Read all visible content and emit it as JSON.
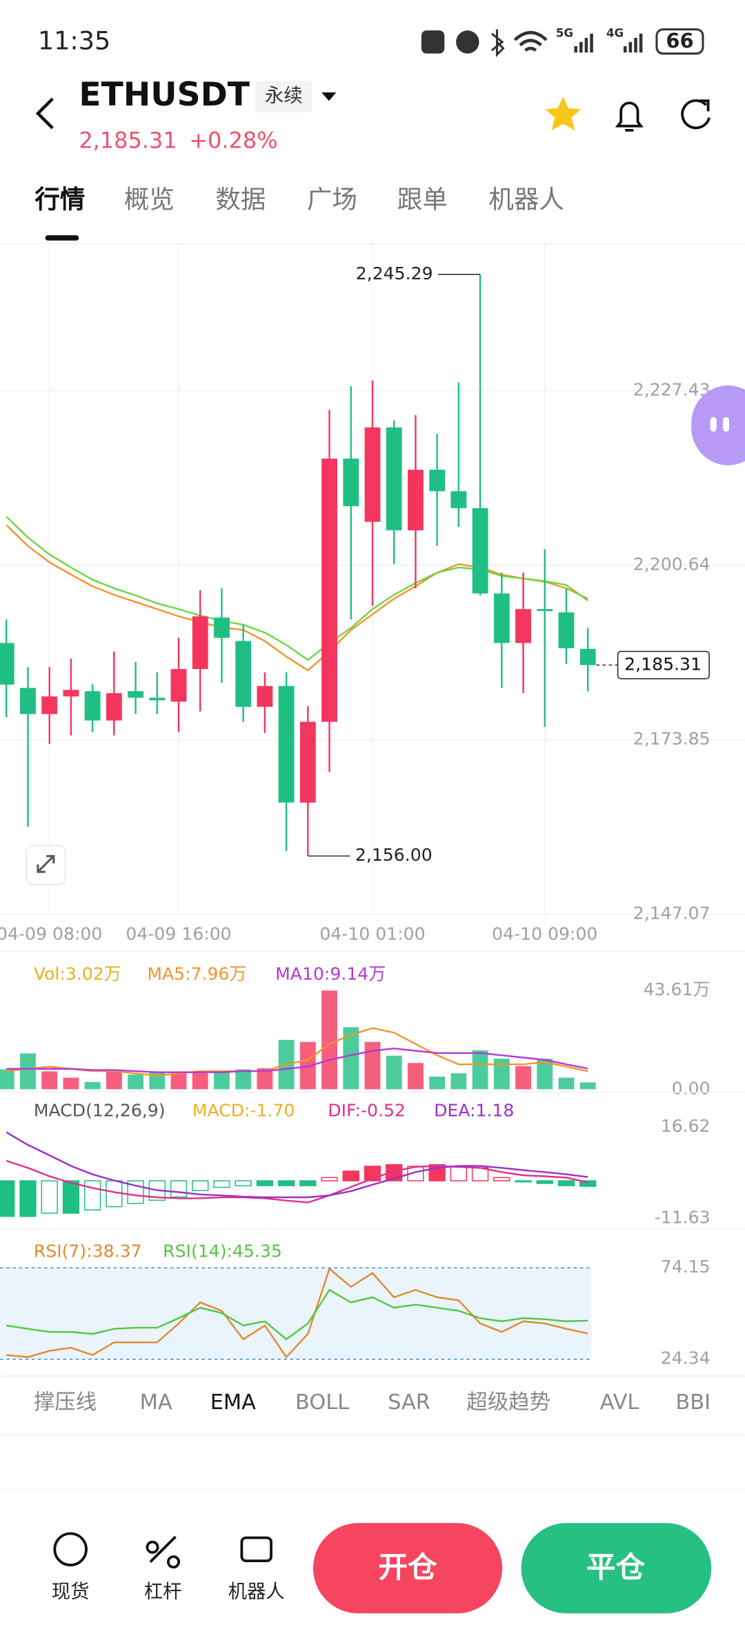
{
  "status_bar": {
    "time": "11:35",
    "net1": "5G",
    "net2": "4G",
    "battery": "66"
  },
  "header": {
    "symbol": "ETHUSDT",
    "badge": "永续",
    "price": "2,185.31",
    "change": "+0.28%"
  },
  "tabs": [
    "行情",
    "概览",
    "数据",
    "广场",
    "跟单",
    "机器人"
  ],
  "chart_data": [
    {
      "type": "candlestick",
      "categories": [
        null,
        null,
        "04-09 08:00",
        null,
        null,
        null,
        null,
        null,
        "04-09 16:00",
        null,
        null,
        null,
        null,
        null,
        null,
        null,
        null,
        "04-10 01:00",
        null,
        null,
        null,
        null,
        null,
        null,
        null,
        "04-10 09:00",
        null,
        null
      ],
      "open": [
        2188.7,
        2181.8,
        2177.8,
        2180.5,
        2181.3,
        2176.8,
        2181.3,
        2180.3,
        2179.7,
        2184.7,
        2192.6,
        2189.0,
        2178.9,
        2182.1,
        2164.2,
        2176.6,
        2217.0,
        2207.3,
        2221.8,
        2206.0,
        2215.3,
        2212.0,
        2209.4,
        2196.3,
        2188.7,
        2193.9,
        2193.4,
        2187.8
      ],
      "high": [
        2192.3,
        2185.0,
        2185.0,
        2186.3,
        2182.4,
        2187.4,
        2185.8,
        2184.2,
        2189.5,
        2196.8,
        2197.1,
        2191.5,
        2184.2,
        2184.2,
        2179.0,
        2224.5,
        2228.1,
        2229.0,
        2222.9,
        2223.7,
        2220.8,
        2228.7,
        2245.29,
        2199.5,
        2199.5,
        2203.1,
        2197.1,
        2191.0
      ],
      "low": [
        2177.3,
        2160.5,
        2173.2,
        2174.5,
        2175.0,
        2174.5,
        2177.8,
        2177.8,
        2175.0,
        2178.2,
        2182.6,
        2176.6,
        2174.9,
        2156.8,
        2156.0,
        2168.9,
        2192.3,
        2194.4,
        2200.8,
        2197.1,
        2203.6,
        2206.5,
        2196.0,
        2181.8,
        2181.0,
        2175.8,
        2185.5,
        2181.3
      ],
      "close": [
        2182.3,
        2177.8,
        2180.5,
        2181.5,
        2176.8,
        2181.0,
        2180.3,
        2179.9,
        2184.7,
        2192.8,
        2189.5,
        2178.9,
        2182.1,
        2164.2,
        2176.6,
        2217.0,
        2209.7,
        2221.8,
        2206.0,
        2215.3,
        2212.0,
        2209.4,
        2196.3,
        2188.7,
        2193.9,
        2193.6,
        2187.9,
        2185.31
      ],
      "up_color": "#f4365e",
      "down_color": "#1fbf83",
      "lines": [
        {
          "color": "#f0962e",
          "values": [
            2206.8,
            2203.6,
            2201.1,
            2199.2,
            2197.4,
            2196.1,
            2195.0,
            2193.9,
            2192.8,
            2191.9,
            2191.1,
            2190.7,
            2189.0,
            2186.6,
            2184.5,
            2187.4,
            2190.7,
            2193.1,
            2195.5,
            2197.4,
            2199.5,
            2200.8,
            2200.3,
            2199.2,
            2198.6,
            2198.1,
            2197.1,
            2195.5
          ]
        },
        {
          "color": "#6ed640",
          "values": [
            2208.1,
            2204.9,
            2202.3,
            2200.3,
            2198.4,
            2197.1,
            2196.0,
            2194.8,
            2193.9,
            2192.9,
            2192.1,
            2191.5,
            2190.3,
            2188.4,
            2186.1,
            2188.7,
            2191.0,
            2193.9,
            2196.1,
            2197.9,
            2199.5,
            2200.3,
            2200.0,
            2199.0,
            2198.6,
            2198.2,
            2197.6,
            2195.2
          ]
        }
      ],
      "ylim": [
        2146.8,
        2250.0
      ],
      "yticks": [
        {
          "value": 2227.43,
          "label": "2,227.43"
        },
        {
          "value": 2200.64,
          "label": "2,200.64"
        },
        {
          "value": 2173.85,
          "label": "2,173.85"
        },
        {
          "value": 2147.07,
          "label": "2,147.07"
        }
      ],
      "grid": true,
      "high_label": {
        "value": 2245.29,
        "label": "2,245.29"
      },
      "low_label": {
        "value": 2156.0,
        "label": "2,156.00"
      },
      "last_price": {
        "value": 2185.31,
        "label": "2,185.31"
      }
    },
    {
      "type": "volume",
      "series": [
        {
          "name": "Vol:3.02万",
          "color": "#e8b020",
          "values": [
            8.8,
            15.8,
            7.9,
            5.1,
            3.2,
            7.9,
            6.5,
            7.9,
            7.9,
            7.9,
            7.9,
            8.8,
            9.3,
            21.8,
            20.9,
            43.6,
            27.4,
            20.9,
            14.8,
            11.6,
            5.6,
            7.0,
            17.2,
            13.5,
            10.2,
            13.5,
            5.1,
            3.02
          ]
        },
        {
          "name": "MA5:7.96万",
          "color": "#f0962e",
          "values": [
            8,
            9,
            10,
            9,
            8,
            8,
            7,
            6,
            7,
            8,
            8,
            8,
            8,
            11,
            13,
            20,
            24,
            27,
            25,
            20,
            15,
            11,
            11,
            11,
            11,
            12,
            10,
            7.96
          ]
        },
        {
          "name": "MA10:9.14万",
          "color": "#b23ad8",
          "values": [
            9,
            9,
            9,
            9,
            8.5,
            8.5,
            8,
            7.5,
            7.5,
            7.5,
            7.5,
            8,
            8,
            9,
            10,
            13,
            15,
            17,
            18,
            17,
            16,
            16,
            16,
            15,
            14,
            13,
            11,
            9.14
          ]
        }
      ],
      "ylim": [
        0,
        43.61
      ],
      "yticks": [
        {
          "value": 43.61,
          "label": "43.61万"
        },
        {
          "value": 0,
          "label": "0.00"
        }
      ]
    },
    {
      "type": "macd",
      "title": "MACD(12,26,9)",
      "series": [
        {
          "name": "MACD:-1.70",
          "color": "#e8b020",
          "values": [
            -11,
            -11,
            -10,
            -10,
            -9,
            -8,
            -7,
            -6,
            -5,
            -3,
            -2,
            -1.5,
            -1.5,
            -1.5,
            -1.5,
            1,
            3,
            4.5,
            5,
            4.5,
            5,
            4.5,
            4,
            1,
            -0.3,
            -0.8,
            -1.5,
            -1.7
          ]
        },
        {
          "name": "DIF:-0.52",
          "color": "#e0308a",
          "values": [
            6.2,
            4.0,
            1.4,
            -0.6,
            -2.2,
            -3.5,
            -4.5,
            -5.1,
            -5.4,
            -5.4,
            -5.1,
            -5.1,
            -5.4,
            -6.1,
            -6.7,
            -4.5,
            -1.9,
            0.7,
            3.0,
            4.3,
            4.6,
            4.3,
            4.0,
            2.7,
            1.7,
            1.4,
            1.0,
            -0.52
          ]
        },
        {
          "name": "DEA:1.18",
          "color": "#9c30c8",
          "values": [
            15.0,
            11.1,
            7.9,
            4.6,
            2.0,
            0.1,
            -1.5,
            -2.9,
            -3.5,
            -4.2,
            -4.5,
            -4.9,
            -5.1,
            -5.1,
            -5.1,
            -4.5,
            -3.2,
            -1.2,
            0.7,
            2.7,
            4.0,
            4.6,
            4.6,
            4.0,
            3.3,
            2.7,
            2.0,
            1.18
          ]
        }
      ],
      "ylim": [
        -11.63,
        16.62
      ],
      "yticks": [
        16.62,
        -11.63
      ]
    },
    {
      "type": "rsi",
      "series": [
        {
          "name": "RSI(7):38.37",
          "color": "#e08a30",
          "values": [
            26.6,
            25.5,
            28.9,
            30.6,
            26.6,
            33.5,
            33.5,
            33.5,
            43.8,
            55.3,
            50.7,
            35.2,
            42.7,
            25.5,
            38.1,
            73.6,
            63.8,
            71.3,
            58.1,
            62.1,
            58.1,
            56.4,
            43.8,
            39.2,
            45.0,
            43.8,
            40.9,
            38.37
          ]
        },
        {
          "name": "RSI(14):45.35",
          "color": "#50c840",
          "values": [
            42.7,
            40.9,
            39.2,
            39.2,
            38.1,
            40.9,
            41.5,
            41.5,
            46.7,
            52.4,
            49.5,
            42.7,
            45.0,
            35.2,
            43.8,
            62.1,
            55.3,
            58.1,
            52.4,
            54.1,
            52.4,
            50.7,
            46.7,
            45.0,
            46.7,
            46.1,
            45.0,
            45.35
          ]
        }
      ],
      "ylim": [
        24.34,
        74.15
      ],
      "yticks": [
        74.15,
        24.34
      ]
    }
  ],
  "indicator_tabs": [
    "撑压线",
    "MA",
    "EMA",
    "BOLL",
    "SAR",
    "超级趋势",
    "AVL",
    "BBI"
  ],
  "bottom_bar": {
    "spot": "现货",
    "margin": "杠杆",
    "bot": "机器人",
    "open": "开仓",
    "close": "平仓"
  }
}
